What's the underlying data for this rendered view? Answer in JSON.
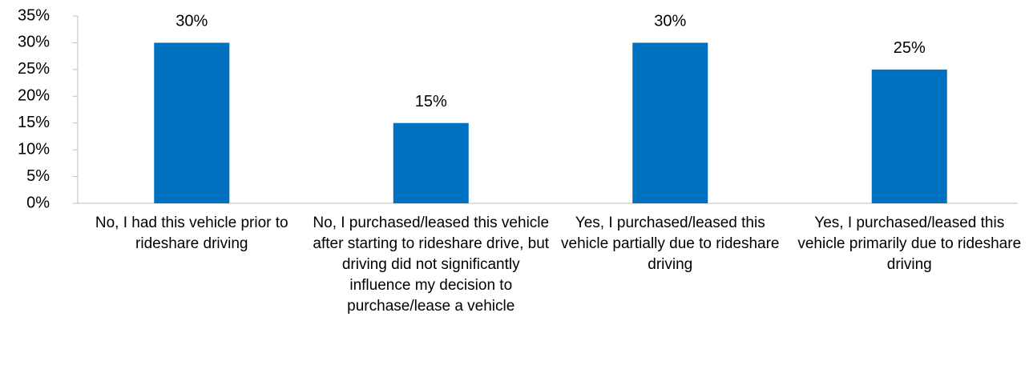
{
  "chart_data": {
    "type": "bar",
    "categories": [
      "No, I had this vehicle prior to rideshare driving",
      "No, I purchased/leased this vehicle after starting to rideshare drive, but driving did not significantly influence my decision to purchase/lease a vehicle",
      "Yes, I purchased/leased this vehicle partially due to rideshare driving",
      "Yes, I purchased/leased this vehicle primarily due to rideshare driving"
    ],
    "values": [
      30,
      15,
      30,
      25
    ],
    "value_labels": [
      "30%",
      "15%",
      "30%",
      "25%"
    ],
    "color": "#0070c0",
    "ylim": [
      0,
      35
    ],
    "yticks": [
      {
        "value": 0,
        "label": "0%"
      },
      {
        "value": 5,
        "label": "5%"
      },
      {
        "value": 10,
        "label": "10%"
      },
      {
        "value": 15,
        "label": "15%"
      },
      {
        "value": 20,
        "label": "20%"
      },
      {
        "value": 25,
        "label": "25%"
      },
      {
        "value": 30,
        "label": "30%"
      },
      {
        "value": 35,
        "label": "35%"
      }
    ],
    "grid": false
  }
}
